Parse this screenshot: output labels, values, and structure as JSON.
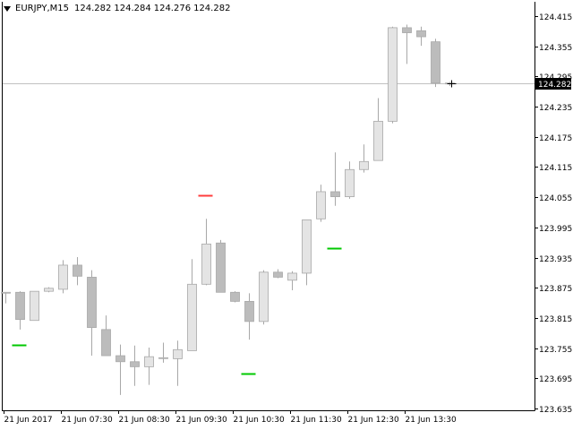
{
  "header": {
    "symbol_timeframe": "EURJPY,M15",
    "open": "124.282",
    "high": "124.284",
    "low": "124.276",
    "close": "124.282"
  },
  "colors": {
    "background": "#ffffff",
    "axis": "#000000",
    "bull_body": "#e4e4e4",
    "bear_body": "#bcbcbc",
    "candle_outline": "#a8a8a8",
    "wick": "#a8a8a8",
    "price_line": "#c0c0c0",
    "price_tag_bg": "#000000",
    "price_tag_text": "#ffffff",
    "marker_green": "#00c800",
    "marker_red": "#ff3c3c"
  },
  "icons": {
    "dropdown": "triangle-down-icon",
    "crosshair": "crosshair-icon"
  },
  "chart_data": {
    "type": "candlestick",
    "symbol": "EURJPY",
    "timeframe": "M15",
    "ylim": [
      123.635,
      124.445
    ],
    "yticks": [
      "124.415",
      "124.355",
      "124.295",
      "124.235",
      "124.175",
      "124.115",
      "124.055",
      "123.995",
      "123.935",
      "123.875",
      "123.815",
      "123.755",
      "123.695",
      "123.635"
    ],
    "xticks": [
      "21 Jun 2017",
      "21 Jun 07:30",
      "21 Jun 08:30",
      "21 Jun 09:30",
      "21 Jun 10:30",
      "21 Jun 11:30",
      "21 Jun 12:30",
      "21 Jun 13:30"
    ],
    "current_price": "124.282",
    "candles": [
      {
        "o": 123.866,
        "h": 123.866,
        "l": 123.844,
        "c": 123.866
      },
      {
        "o": 123.866,
        "h": 123.868,
        "l": 123.792,
        "c": 123.812
      },
      {
        "o": 123.81,
        "h": 123.868,
        "l": 123.81,
        "c": 123.868
      },
      {
        "o": 123.868,
        "h": 123.876,
        "l": 123.866,
        "c": 123.874
      },
      {
        "o": 123.872,
        "h": 123.93,
        "l": 123.864,
        "c": 123.92
      },
      {
        "o": 123.92,
        "h": 123.936,
        "l": 123.88,
        "c": 123.898
      },
      {
        "o": 123.896,
        "h": 123.91,
        "l": 123.74,
        "c": 123.796
      },
      {
        "o": 123.792,
        "h": 123.82,
        "l": 123.74,
        "c": 123.74
      },
      {
        "o": 123.74,
        "h": 123.762,
        "l": 123.662,
        "c": 123.728
      },
      {
        "o": 123.728,
        "h": 123.76,
        "l": 123.68,
        "c": 123.718
      },
      {
        "o": 123.718,
        "h": 123.756,
        "l": 123.682,
        "c": 123.738
      },
      {
        "o": 123.736,
        "h": 123.766,
        "l": 123.726,
        "c": 123.736
      },
      {
        "o": 123.734,
        "h": 123.77,
        "l": 123.68,
        "c": 123.752
      },
      {
        "o": 123.75,
        "h": 123.932,
        "l": 123.75,
        "c": 123.882
      },
      {
        "o": 123.882,
        "h": 124.012,
        "l": 123.88,
        "c": 123.962
      },
      {
        "o": 123.964,
        "h": 123.97,
        "l": 123.868,
        "c": 123.866
      },
      {
        "o": 123.866,
        "h": 123.868,
        "l": 123.846,
        "c": 123.848
      },
      {
        "o": 123.848,
        "h": 123.864,
        "l": 123.772,
        "c": 123.808
      },
      {
        "o": 123.808,
        "h": 123.91,
        "l": 123.802,
        "c": 123.906
      },
      {
        "o": 123.906,
        "h": 123.912,
        "l": 123.894,
        "c": 123.896
      },
      {
        "o": 123.89,
        "h": 123.908,
        "l": 123.87,
        "c": 123.904
      },
      {
        "o": 123.904,
        "h": 124.01,
        "l": 123.88,
        "c": 124.01
      },
      {
        "o": 124.012,
        "h": 124.08,
        "l": 124.006,
        "c": 124.066
      },
      {
        "o": 124.066,
        "h": 124.144,
        "l": 124.038,
        "c": 124.056
      },
      {
        "o": 124.056,
        "h": 124.126,
        "l": 124.052,
        "c": 124.11
      },
      {
        "o": 124.11,
        "h": 124.16,
        "l": 124.104,
        "c": 124.126
      },
      {
        "o": 124.128,
        "h": 124.252,
        "l": 124.128,
        "c": 124.206
      },
      {
        "o": 124.206,
        "h": 124.394,
        "l": 124.202,
        "c": 124.392
      },
      {
        "o": 124.392,
        "h": 124.398,
        "l": 124.32,
        "c": 124.382
      },
      {
        "o": 124.386,
        "h": 124.394,
        "l": 124.356,
        "c": 124.374
      },
      {
        "o": 124.364,
        "h": 124.37,
        "l": 124.274,
        "c": 124.282
      },
      {
        "o": 124.282,
        "h": 124.284,
        "l": 124.276,
        "c": 124.282
      }
    ],
    "markers": [
      {
        "index": 1,
        "price": 123.762,
        "color": "green"
      },
      {
        "index": 14,
        "price": 124.058,
        "color": "red"
      },
      {
        "index": 17,
        "price": 123.705,
        "color": "green"
      },
      {
        "index": 23,
        "price": 123.954,
        "color": "green"
      }
    ]
  }
}
